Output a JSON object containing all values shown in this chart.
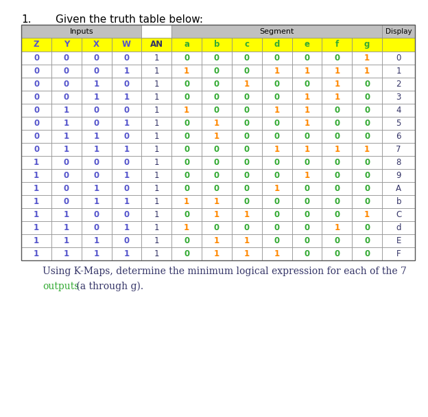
{
  "title_number": "1.",
  "title_text": "Given the truth table below:",
  "columns": [
    "Z",
    "Y",
    "X",
    "W",
    "AN",
    "a",
    "b",
    "c",
    "d",
    "e",
    "f",
    "g",
    "Display"
  ],
  "rows": [
    [
      0,
      0,
      0,
      0,
      1,
      0,
      0,
      0,
      0,
      0,
      0,
      1,
      "0"
    ],
    [
      0,
      0,
      0,
      1,
      1,
      1,
      0,
      0,
      1,
      1,
      1,
      1,
      "1"
    ],
    [
      0,
      0,
      1,
      0,
      1,
      0,
      0,
      1,
      0,
      0,
      1,
      0,
      "2"
    ],
    [
      0,
      0,
      1,
      1,
      1,
      0,
      0,
      0,
      0,
      1,
      1,
      0,
      "3"
    ],
    [
      0,
      1,
      0,
      0,
      1,
      1,
      0,
      0,
      1,
      1,
      0,
      0,
      "4"
    ],
    [
      0,
      1,
      0,
      1,
      1,
      0,
      1,
      0,
      0,
      1,
      0,
      0,
      "5"
    ],
    [
      0,
      1,
      1,
      0,
      1,
      0,
      1,
      0,
      0,
      0,
      0,
      0,
      "6"
    ],
    [
      0,
      1,
      1,
      1,
      1,
      0,
      0,
      0,
      1,
      1,
      1,
      1,
      "7"
    ],
    [
      1,
      0,
      0,
      0,
      1,
      0,
      0,
      0,
      0,
      0,
      0,
      0,
      "8"
    ],
    [
      1,
      0,
      0,
      1,
      1,
      0,
      0,
      0,
      0,
      1,
      0,
      0,
      "9"
    ],
    [
      1,
      0,
      1,
      0,
      1,
      0,
      0,
      0,
      1,
      0,
      0,
      0,
      "A"
    ],
    [
      1,
      0,
      1,
      1,
      1,
      1,
      1,
      0,
      0,
      0,
      0,
      0,
      "b"
    ],
    [
      1,
      1,
      0,
      0,
      1,
      0,
      1,
      1,
      0,
      0,
      0,
      1,
      "C"
    ],
    [
      1,
      1,
      0,
      1,
      1,
      1,
      0,
      0,
      0,
      0,
      1,
      0,
      "d"
    ],
    [
      1,
      1,
      1,
      0,
      1,
      0,
      1,
      1,
      0,
      0,
      0,
      0,
      "E"
    ],
    [
      1,
      1,
      1,
      1,
      1,
      0,
      1,
      1,
      1,
      0,
      0,
      0,
      "F"
    ]
  ],
  "footer_text1": "Using K-Maps, determine the minimum logical expression for each of the 7",
  "footer_text2": " (a through g).",
  "footer_word": "outputs",
  "footer_color_normal": "#333366",
  "footer_color_highlight": "#33aa33",
  "bg_color": "#ffffff",
  "header_group_bg": "#c0c0c0",
  "header_row_bg": "#ffff00",
  "header_color_zyxw": "#5555cc",
  "header_color_an": "#333366",
  "header_color_seg": "#33aa33",
  "cell_color_zyxw_0": "#5555cc",
  "cell_color_zyxw_1": "#5555cc",
  "cell_color_an": "#333366",
  "cell_color_seg_0": "#33aa33",
  "cell_color_seg_1": "#ff8800",
  "cell_color_display": "#333366",
  "col_widths": [
    1.0,
    1.0,
    1.0,
    1.0,
    1.0,
    1.0,
    1.0,
    1.0,
    1.0,
    1.0,
    1.0,
    1.0,
    1.1
  ]
}
